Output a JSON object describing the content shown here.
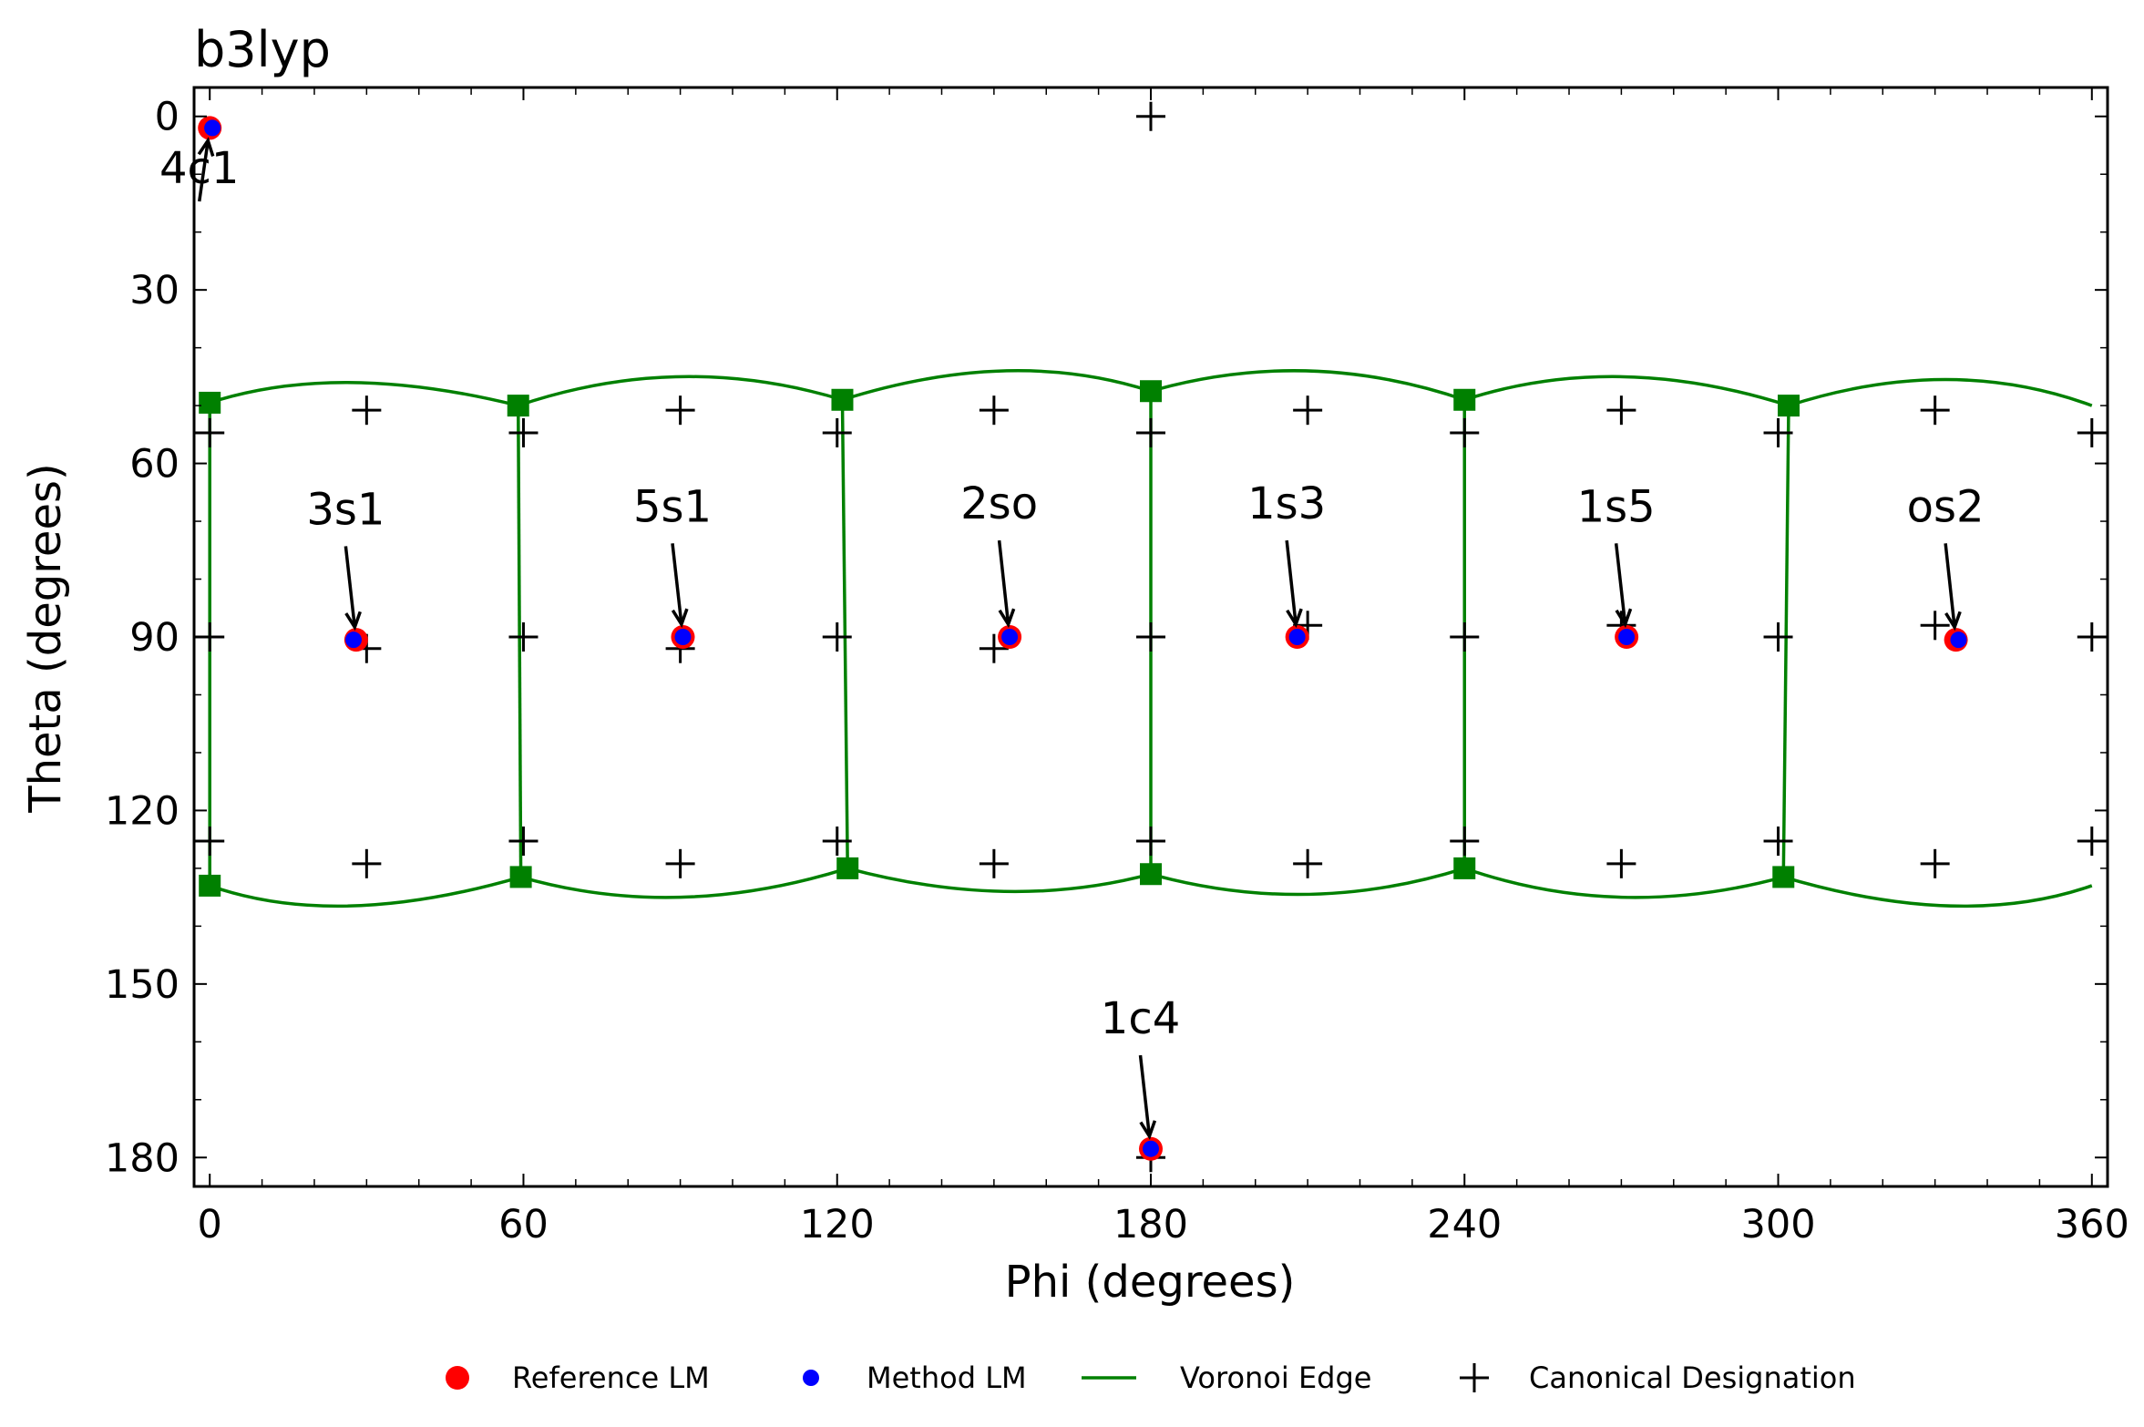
{
  "chart_data": {
    "type": "scatter",
    "title": "b3lyp",
    "xlabel": "Phi (degrees)",
    "ylabel": "Theta (degrees)",
    "xlim": [
      -3,
      363
    ],
    "ylim": [
      185,
      -5
    ],
    "xticks": [
      0,
      60,
      120,
      180,
      240,
      300,
      360
    ],
    "yticks": [
      0,
      30,
      60,
      90,
      120,
      150,
      180
    ],
    "colors": {
      "reference": "#ff0000",
      "method": "#0000ff",
      "voronoi": "#008000",
      "canonical": "#000000"
    },
    "legend": {
      "position": "bottom",
      "entries": [
        {
          "label": "Reference LM",
          "marker": "red-circle"
        },
        {
          "label": "Method LM",
          "marker": "blue-dot"
        },
        {
          "label": "Voronoi Edge",
          "marker": "green-line"
        },
        {
          "label": "Canonical Designation",
          "marker": "black-plus"
        }
      ]
    },
    "reference_lm": [
      {
        "phi": 0,
        "theta": 2
      },
      {
        "phi": 28,
        "theta": 90.5
      },
      {
        "phi": 90.5,
        "theta": 90
      },
      {
        "phi": 153,
        "theta": 90
      },
      {
        "phi": 208,
        "theta": 90
      },
      {
        "phi": 271,
        "theta": 90
      },
      {
        "phi": 334,
        "theta": 90.5
      },
      {
        "phi": 180,
        "theta": 178.5
      }
    ],
    "method_lm": [
      {
        "phi": 0.5,
        "theta": 2
      },
      {
        "phi": 27.5,
        "theta": 90.5
      },
      {
        "phi": 90.5,
        "theta": 90
      },
      {
        "phi": 153,
        "theta": 90
      },
      {
        "phi": 208,
        "theta": 90
      },
      {
        "phi": 271,
        "theta": 90
      },
      {
        "phi": 334.5,
        "theta": 90.5
      },
      {
        "phi": 180,
        "theta": 178.5
      }
    ],
    "annotations": [
      {
        "label": "4c1",
        "phi": 0,
        "theta": 2,
        "text_phi": -2,
        "text_theta": 15
      },
      {
        "label": "3s1",
        "phi": 28,
        "theta": 90.5,
        "text_phi": 26,
        "text_theta": 74
      },
      {
        "label": "5s1",
        "phi": 90.5,
        "theta": 90,
        "text_phi": 88.5,
        "text_theta": 73.5
      },
      {
        "label": "2so",
        "phi": 153,
        "theta": 90,
        "text_phi": 151,
        "text_theta": 73
      },
      {
        "label": "1s3",
        "phi": 208,
        "theta": 90,
        "text_phi": 206,
        "text_theta": 73
      },
      {
        "label": "1s5",
        "phi": 271,
        "theta": 90,
        "text_phi": 269,
        "text_theta": 73.5
      },
      {
        "label": "os2",
        "phi": 334,
        "theta": 90.5,
        "text_phi": 332,
        "text_theta": 73.5
      },
      {
        "label": "1c4",
        "phi": 180,
        "theta": 178.5,
        "text_phi": 178,
        "text_theta": 162
      }
    ],
    "canonical": [
      {
        "phi": 180,
        "theta": 0
      },
      {
        "phi": 30,
        "theta": 50.8
      },
      {
        "phi": 90,
        "theta": 50.8
      },
      {
        "phi": 150,
        "theta": 50.8
      },
      {
        "phi": 210,
        "theta": 50.8
      },
      {
        "phi": 270,
        "theta": 50.8
      },
      {
        "phi": 330,
        "theta": 50.8
      },
      {
        "phi": 0,
        "theta": 54.7
      },
      {
        "phi": 60,
        "theta": 54.7
      },
      {
        "phi": 120,
        "theta": 54.7
      },
      {
        "phi": 180,
        "theta": 54.7
      },
      {
        "phi": 240,
        "theta": 54.7
      },
      {
        "phi": 300,
        "theta": 54.7
      },
      {
        "phi": 360,
        "theta": 54.7
      },
      {
        "phi": 0,
        "theta": 90
      },
      {
        "phi": 60,
        "theta": 90
      },
      {
        "phi": 120,
        "theta": 90
      },
      {
        "phi": 180,
        "theta": 90
      },
      {
        "phi": 240,
        "theta": 90
      },
      {
        "phi": 300,
        "theta": 90
      },
      {
        "phi": 360,
        "theta": 90
      },
      {
        "phi": 30,
        "theta": 92
      },
      {
        "phi": 90,
        "theta": 92
      },
      {
        "phi": 150,
        "theta": 92
      },
      {
        "phi": 210,
        "theta": 88
      },
      {
        "phi": 270,
        "theta": 88
      },
      {
        "phi": 330,
        "theta": 88
      },
      {
        "phi": 0,
        "theta": 125.3
      },
      {
        "phi": 60,
        "theta": 125.3
      },
      {
        "phi": 120,
        "theta": 125.3
      },
      {
        "phi": 180,
        "theta": 125.3
      },
      {
        "phi": 240,
        "theta": 125.3
      },
      {
        "phi": 300,
        "theta": 125.3
      },
      {
        "phi": 360,
        "theta": 125.3
      },
      {
        "phi": 30,
        "theta": 129.2
      },
      {
        "phi": 90,
        "theta": 129.2
      },
      {
        "phi": 150,
        "theta": 129.2
      },
      {
        "phi": 210,
        "theta": 129.2
      },
      {
        "phi": 270,
        "theta": 129.2
      },
      {
        "phi": 330,
        "theta": 129.2
      },
      {
        "phi": 180,
        "theta": 180
      }
    ],
    "voronoi_vertices": [
      {
        "phi": 0,
        "theta": 49.5
      },
      {
        "phi": 59,
        "theta": 50
      },
      {
        "phi": 121,
        "theta": 49
      },
      {
        "phi": 180,
        "theta": 47.5
      },
      {
        "phi": 240,
        "theta": 49
      },
      {
        "phi": 302,
        "theta": 50
      },
      {
        "phi": 0,
        "theta": 133
      },
      {
        "phi": 59.5,
        "theta": 131.5
      },
      {
        "phi": 122,
        "theta": 130
      },
      {
        "phi": 180,
        "theta": 131
      },
      {
        "phi": 240,
        "theta": 130
      },
      {
        "phi": 301,
        "theta": 131.5
      }
    ],
    "voronoi_top_arcs": [
      [
        {
          "phi": 0,
          "theta": 49.5
        },
        {
          "phi": 27,
          "theta": 46
        },
        {
          "phi": 59,
          "theta": 50
        }
      ],
      [
        {
          "phi": 59,
          "theta": 50
        },
        {
          "phi": 90,
          "theta": 45
        },
        {
          "phi": 121,
          "theta": 49
        }
      ],
      [
        {
          "phi": 121,
          "theta": 49
        },
        {
          "phi": 152,
          "theta": 44
        },
        {
          "phi": 180,
          "theta": 47.5
        }
      ],
      [
        {
          "phi": 180,
          "theta": 47.5
        },
        {
          "phi": 210,
          "theta": 44
        },
        {
          "phi": 240,
          "theta": 49
        }
      ],
      [
        {
          "phi": 240,
          "theta": 49
        },
        {
          "phi": 270,
          "theta": 45
        },
        {
          "phi": 302,
          "theta": 50
        }
      ],
      [
        {
          "phi": 302,
          "theta": 50
        },
        {
          "phi": 332,
          "theta": 45.5
        },
        {
          "phi": 360,
          "theta": 50
        }
      ]
    ],
    "voronoi_bottom_arcs": [
      [
        {
          "phi": 0,
          "theta": 133
        },
        {
          "phi": 27,
          "theta": 136.5
        },
        {
          "phi": 59.5,
          "theta": 131.5
        }
      ],
      [
        {
          "phi": 59.5,
          "theta": 131.5
        },
        {
          "phi": 90,
          "theta": 135
        },
        {
          "phi": 122,
          "theta": 130
        }
      ],
      [
        {
          "phi": 122,
          "theta": 130
        },
        {
          "phi": 152,
          "theta": 134
        },
        {
          "phi": 180,
          "theta": 131
        }
      ],
      [
        {
          "phi": 180,
          "theta": 131
        },
        {
          "phi": 210,
          "theta": 134.5
        },
        {
          "phi": 240,
          "theta": 130
        }
      ],
      [
        {
          "phi": 240,
          "theta": 130
        },
        {
          "phi": 270,
          "theta": 135
        },
        {
          "phi": 301,
          "theta": 131.5
        }
      ],
      [
        {
          "phi": 301,
          "theta": 131.5
        },
        {
          "phi": 333,
          "theta": 136.5
        },
        {
          "phi": 360,
          "theta": 133
        }
      ]
    ],
    "voronoi_verticals": [
      [
        {
          "phi": 0,
          "theta": 49.5
        },
        {
          "phi": 0,
          "theta": 133
        }
      ],
      [
        {
          "phi": 59,
          "theta": 50
        },
        {
          "phi": 59.5,
          "theta": 131.5
        }
      ],
      [
        {
          "phi": 121,
          "theta": 49
        },
        {
          "phi": 122,
          "theta": 130
        }
      ],
      [
        {
          "phi": 180,
          "theta": 47.5
        },
        {
          "phi": 180,
          "theta": 131
        }
      ],
      [
        {
          "phi": 240,
          "theta": 49
        },
        {
          "phi": 240,
          "theta": 130
        }
      ],
      [
        {
          "phi": 302,
          "theta": 50
        },
        {
          "phi": 301,
          "theta": 131.5
        }
      ]
    ]
  }
}
